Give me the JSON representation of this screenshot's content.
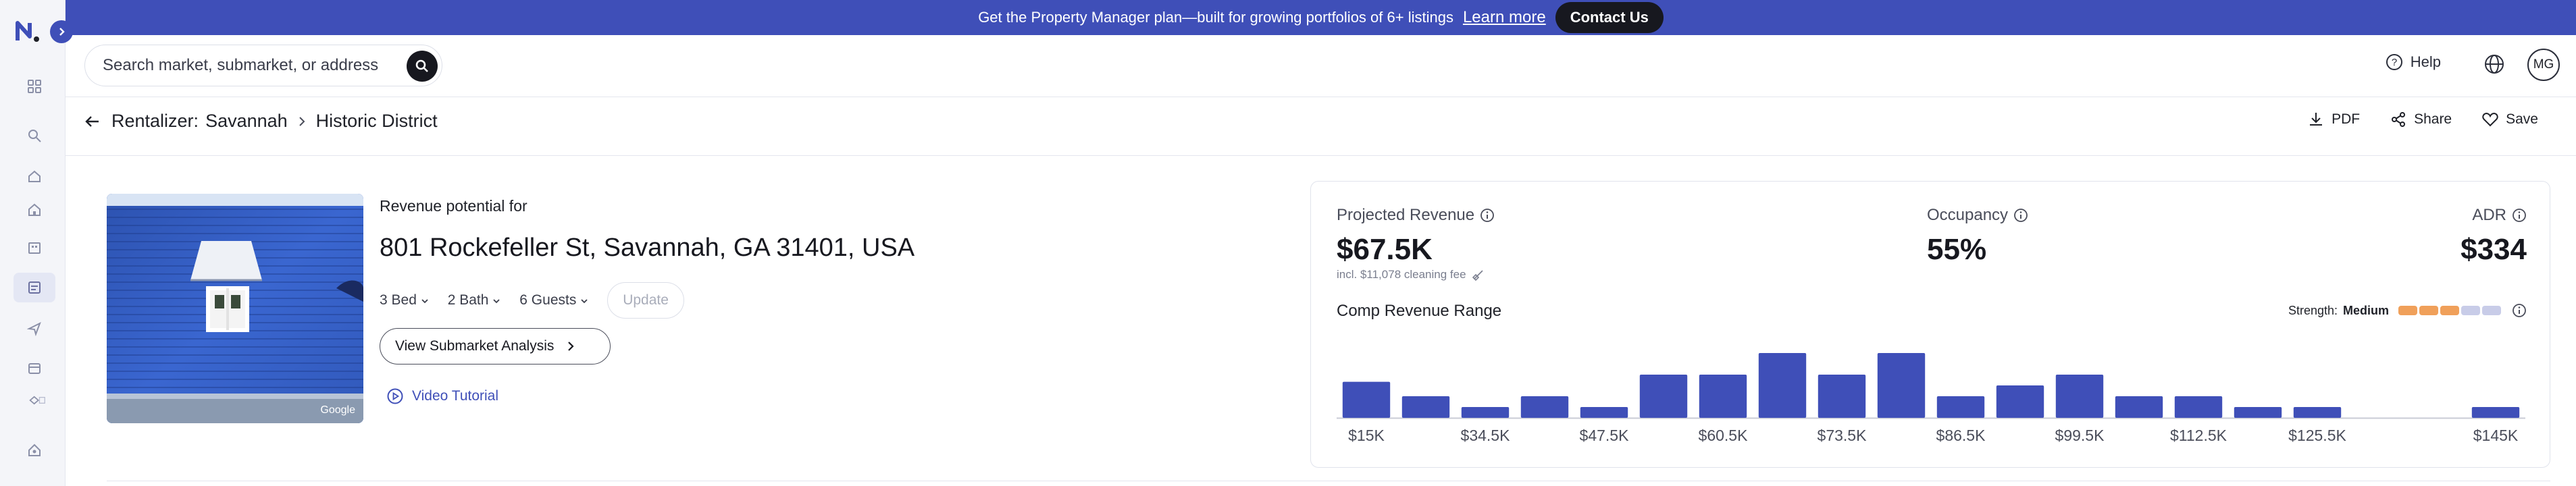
{
  "banner": {
    "message": "Get the Property Manager plan—built for growing portfolios of 6+ listings",
    "learn_more": "Learn more",
    "contact": "Contact Us"
  },
  "search": {
    "placeholder": "Search market, submarket, or address"
  },
  "header": {
    "help": "Help",
    "avatar_initials": "MG"
  },
  "breadcrumb": {
    "root": "Rentalizer:",
    "market": "Savannah",
    "submarket": "Historic District"
  },
  "actions": {
    "pdf": "PDF",
    "share": "Share",
    "save": "Save"
  },
  "property": {
    "revenue_for": "Revenue potential for",
    "address": "801 Rockefeller St, Savannah, GA 31401, USA",
    "beds": "3 Bed",
    "baths": "2 Bath",
    "guests": "6 Guests",
    "update": "Update",
    "view_submarket": "View Submarket Analysis",
    "video_tutorial": "Video Tutorial",
    "photo_credit": "Google"
  },
  "metrics": {
    "projected_label": "Projected Revenue",
    "projected_value": "$67.5K",
    "cleaning_note": "incl. $11,078 cleaning fee",
    "occupancy_label": "Occupancy",
    "occupancy_value": "55%",
    "adr_label": "ADR",
    "adr_value": "$334"
  },
  "comp_range": {
    "title": "Comp Revenue Range",
    "strength_label": "Strength:",
    "strength_value": "Medium",
    "strength_segments": [
      "#f0a05a",
      "#f0a05a",
      "#f0a05a",
      "#c8cce8",
      "#c8cce8"
    ]
  },
  "chart_data": {
    "type": "bar",
    "bins": 20,
    "values": [
      5,
      3,
      1.5,
      3,
      1.5,
      6,
      6,
      9,
      6,
      9,
      3,
      4.5,
      6,
      3,
      3,
      1.5,
      1.5,
      0,
      0,
      1.5
    ],
    "tick_labels": [
      "$15K",
      "$34.5K",
      "$47.5K",
      "$60.5K",
      "$73.5K",
      "$86.5K",
      "$99.5K",
      "$112.5K",
      "$125.5K",
      "$145K"
    ],
    "tick_bins": [
      0,
      2,
      4,
      6,
      8,
      10,
      12,
      14,
      16,
      19
    ],
    "color": "#3f4fb8"
  },
  "colors": {
    "accent": "#3f4fb8",
    "dark": "#17181f"
  }
}
